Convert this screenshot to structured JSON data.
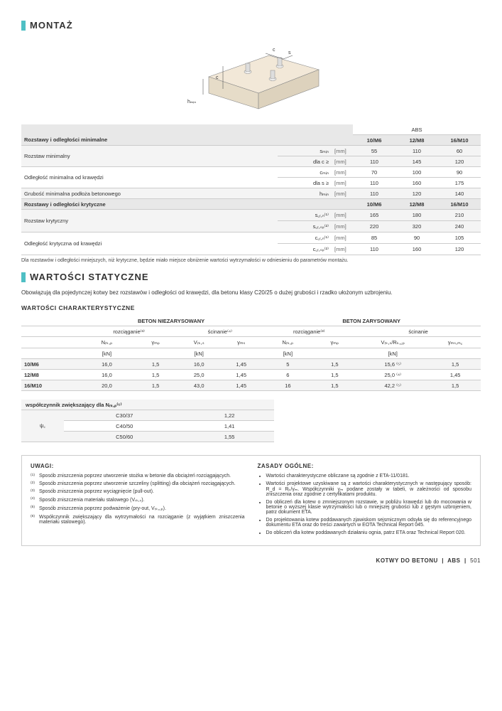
{
  "sections": {
    "montaz": "MONTAŻ",
    "wartosci": "WARTOŚCI STATYCZNE"
  },
  "diagram": {
    "hmin": "hₘᵢₙ",
    "c": "c",
    "s": "s"
  },
  "tbl1": {
    "abs": "ABS",
    "hdr_min": "Rozstawy i odległości minimalne",
    "hdr_cr": "Rozstawy i odległości krytyczne",
    "cols": [
      "10/M6",
      "12/M8",
      "16/M10"
    ],
    "rows_min": [
      {
        "label": "Rozstaw minimalny",
        "param": "sₘᵢₙ",
        "unit": "[mm]",
        "vals": [
          55,
          110,
          60
        ],
        "alt": true
      },
      {
        "label": "",
        "param": "dla c ≥",
        "unit": "[mm]",
        "vals": [
          110,
          145,
          120
        ],
        "alt": true
      },
      {
        "label": "Odległość minimalna od krawędzi",
        "param": "cₘᵢₙ",
        "unit": "[mm]",
        "vals": [
          70,
          100,
          90
        ],
        "alt": false
      },
      {
        "label": "",
        "param": "dla s ≥",
        "unit": "[mm]",
        "vals": [
          110,
          160,
          175
        ],
        "alt": false
      },
      {
        "label": "Grubość minimalna podłoża betonowego",
        "param": "hₘᵢₙ",
        "unit": "[mm]",
        "vals": [
          110,
          120,
          140
        ],
        "alt": true
      }
    ],
    "rows_cr": [
      {
        "label": "Rozstaw krytyczny",
        "param": "s꜀ᵣ,ₙ⁽¹⁾",
        "unit": "[mm]",
        "vals": [
          165,
          180,
          210
        ],
        "alt": true
      },
      {
        "label": "",
        "param": "s꜀ᵣ,ₛₚ⁽²⁾",
        "unit": "[mm]",
        "vals": [
          220,
          320,
          240
        ],
        "alt": true
      },
      {
        "label": "Odległość krytyczna od krawędzi",
        "param": "c꜀ᵣ,ₙ⁽¹⁾",
        "unit": "[mm]",
        "vals": [
          85,
          90,
          105
        ],
        "alt": false
      },
      {
        "label": "",
        "param": "c꜀ᵣ,ₛₚ⁽²⁾",
        "unit": "[mm]",
        "vals": [
          110,
          160,
          120
        ],
        "alt": false
      }
    ],
    "note": "Dla rozstawów i odległości mniejszych, niż krytyczne, będzie miało miejsce obniżenie wartości wytrzymałości w odniesieniu do parametrów montażu."
  },
  "para1": "Obowiązują dla pojedynczej kotwy bez rozstawów i odległości od krawędzi, dla betonu klasy C20/25 o dużej grubości i rzadko ułożonym uzbrojeniu.",
  "subhead1": "WARTOŚCI CHARAKTERYSTYCZNE",
  "tbl2": {
    "grp1": "BETON NIEZARYSOWANY",
    "grp2": "BETON ZARYSOWANY",
    "sub": [
      "rozciąganie⁽³⁾",
      "ścinanie⁽⁴⁾",
      "rozciąganie⁽³⁾",
      "ścinanie"
    ],
    "cols": [
      "Nᵣₖ,ₚ",
      "γₘₚ",
      "Vᵣₖ,ₛ",
      "γₘₛ",
      "Nᵣₖ,ₚ",
      "γₘₚ",
      "Vᵣₖ,ₛ/Rₖ,꜀ₚ",
      "γₘₛ,ₘ꜀"
    ],
    "units": [
      "[kN]",
      "",
      "[kN]",
      "",
      "[kN]",
      "",
      "[kN]",
      ""
    ],
    "rows": [
      {
        "lbl": "10/M6",
        "vals": [
          "16,0",
          "1,5",
          "16,0",
          "1,45",
          "5",
          "1,5",
          "15,6 ⁽⁵⁾",
          "1,5"
        ],
        "alt": true
      },
      {
        "lbl": "12/M8",
        "vals": [
          "16,0",
          "1,5",
          "25,0",
          "1,45",
          "6",
          "1,5",
          "25,0 ⁽⁴⁾",
          "1,45"
        ],
        "alt": false
      },
      {
        "lbl": "16/M10",
        "vals": [
          "20,0",
          "1,5",
          "43,0",
          "1,45",
          "16",
          "1,5",
          "42,2 ⁽⁵⁾",
          "1,5"
        ],
        "alt": true
      }
    ]
  },
  "tbl3": {
    "hdr": "współczynnik zwiększający dla Nᵣₖ,ₚ⁽⁶⁾",
    "param": "ψ꜀",
    "rows": [
      {
        "lbl": "C30/37",
        "val": "1,22",
        "alt": true
      },
      {
        "lbl": "C40/50",
        "val": "1,41",
        "alt": false
      },
      {
        "lbl": "C50/60",
        "val": "1,55",
        "alt": true
      }
    ]
  },
  "notes": {
    "left_title": "UWAGI:",
    "right_title": "ZASADY OGÓLNE:",
    "left": [
      "Sposób zniszczenia poprzez utworzenie stożka w betonie dla obciążeń rozciągających.",
      "Sposób zniszczenia poprzez utworzenie szczeliny (splitting) dla obciążeń rozciągających.",
      "Sposób zniszczenia poprzez wyciągnięcie (pull-out).",
      "Sposób zniszczenia materiału stalowego (Vᵣₖ,ₛ).",
      "Sposób zniszczenia poprzez podważenie (pry-out, Vᵣₖ,꜀ₚ).",
      "Współczynnik zwiększający dla wytrzymałości na rozciąganie (z wyjątkiem zniszczenia materiału stalowego)."
    ],
    "right": [
      "Wartości charakterystyczne obliczane są zgodnie z ETA-11/0181.",
      "Wartości projektowe uzyskiwane są z wartości charakterystycznych w następujący sposób: R_d = Rₖ/γₘ.\nWspółczynniki γₘ podane zostały w tabeli, w zależności od sposobu zniszczenia oraz zgodnie z certyfikatami produktu.",
      "Do obliczeń dla kotew o zmniejszonym rozstawie, w pobliżu krawędzi lub do mocowania w betonie o wyższej klasie wytrzymałości lub o mniejszej grubości lub z gęstym uzbrojeniem, patrz dokument ETA.",
      "Do projektowania kotew poddawanych zjawiskom sejsmicznym odsyła się do referencyjnego dokumentu ETA oraz do treści zawartych w EOTA Technical Report 045.",
      "Do obliczeń dla kotew poddawanych działaniu ognia, patrz ETA oraz Technical Report 020."
    ]
  },
  "footer": {
    "left": "KOTWY DO BETONU",
    "mid": "ABS",
    "page": "501"
  }
}
